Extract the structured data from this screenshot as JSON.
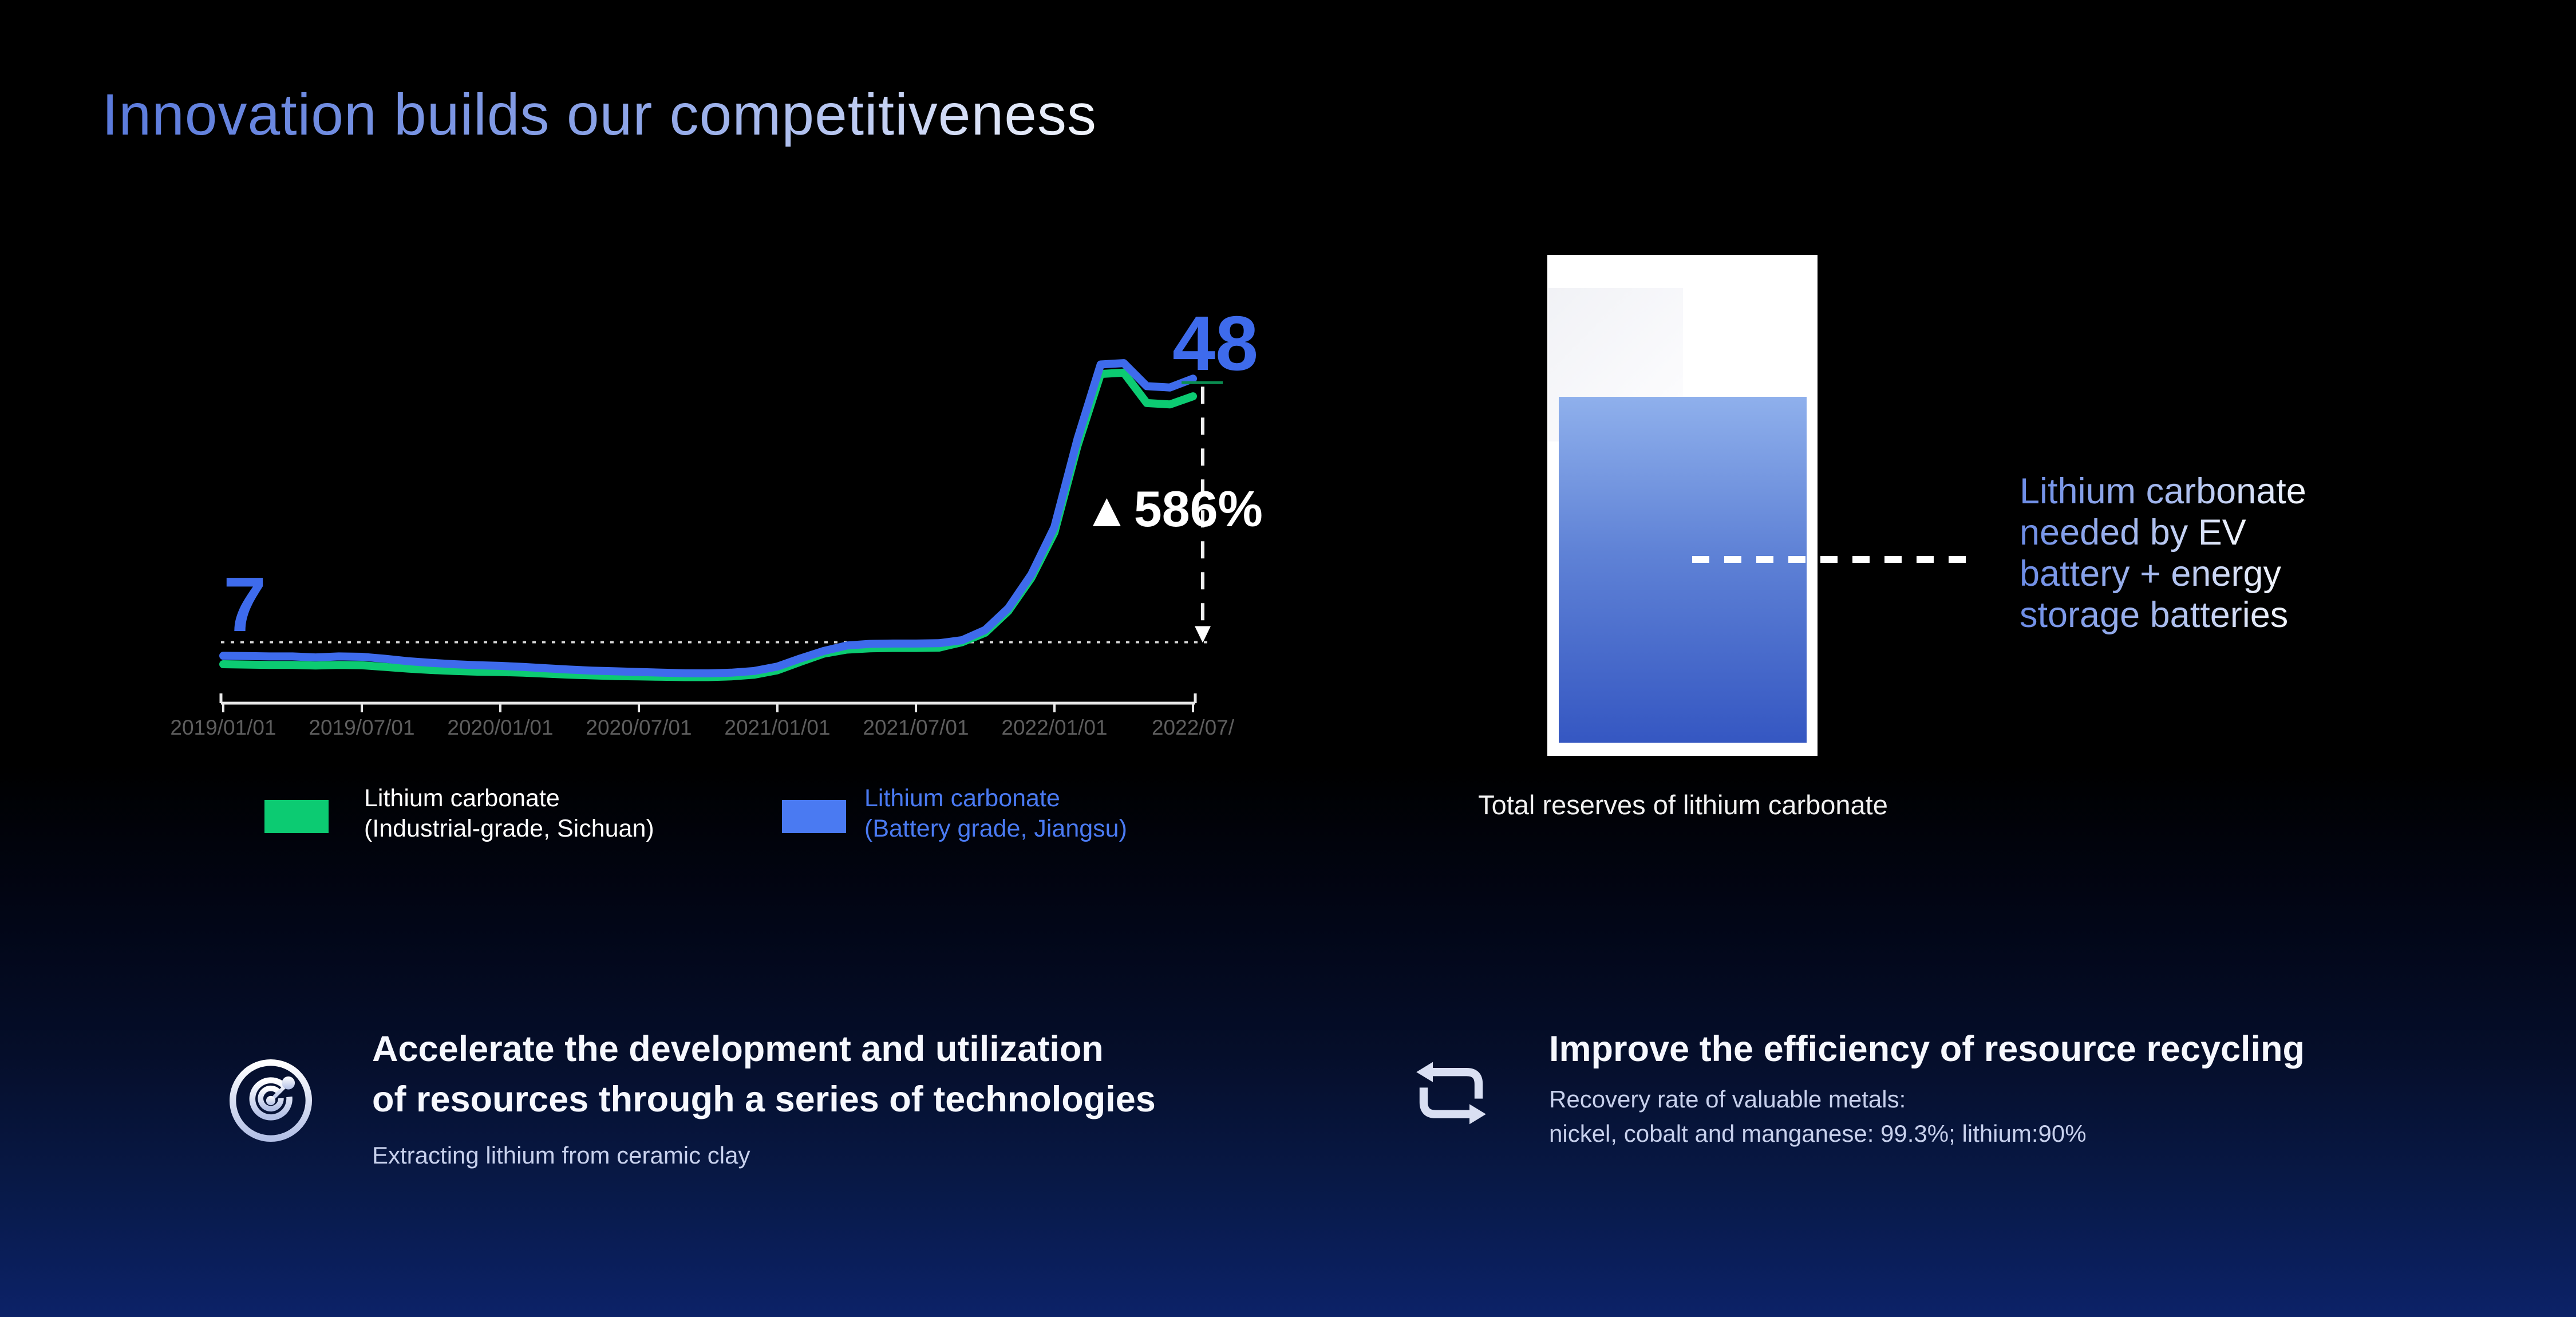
{
  "slide": {
    "title": "Innovation builds our competitiveness"
  },
  "chart": {
    "start_label": "7",
    "end_label": "48",
    "change_marker": "▲",
    "change_label": "586%",
    "legend": [
      {
        "line1": "Lithium carbonate",
        "line2": "(Industrial-grade, Sichuan)",
        "color": "#0ccb72"
      },
      {
        "line1": "Lithium carbonate",
        "line2": "(Battery grade, Jiangsu)",
        "color": "#4a7af2"
      }
    ]
  },
  "chart_data": {
    "type": "line",
    "title": "Lithium carbonate price trend",
    "x_tick_labels": [
      "2019/01/01",
      "2019/07/01",
      "2020/01/01",
      "2020/07/01",
      "2021/01/01",
      "2021/07/01",
      "2022/01/01",
      "2022/07/"
    ],
    "x_range": [
      "2019/01",
      "2022/07"
    ],
    "ylim": [
      0,
      55
    ],
    "reference_level": 9.0,
    "grid": false,
    "legend_position": "bottom",
    "annotations": {
      "start_value": 7,
      "end_value": 48,
      "change_percent": "+586%"
    },
    "series": [
      {
        "name": "Lithium carbonate (Industrial-grade, Sichuan)",
        "color": "#0ccb72",
        "values": [
          5.75,
          5.7,
          5.65,
          5.65,
          5.55,
          5.65,
          5.6,
          5.35,
          5.1,
          4.9,
          4.75,
          4.65,
          4.6,
          4.5,
          4.35,
          4.2,
          4.1,
          4.0,
          3.95,
          3.9,
          3.85,
          3.85,
          3.95,
          4.2,
          4.85,
          6.1,
          7.3,
          7.9,
          8.1,
          8.15,
          8.15,
          8.2,
          9.0,
          10.4,
          13.6,
          18.5,
          25.2,
          38.0,
          48.6,
          48.8,
          44.3,
          44.1,
          45.3
        ]
      },
      {
        "name": "Lithium carbonate (Battery grade, Jiangsu)",
        "color": "#3e6bec",
        "values": [
          7.0,
          6.95,
          6.9,
          6.9,
          6.75,
          6.9,
          6.85,
          6.55,
          6.2,
          5.95,
          5.75,
          5.6,
          5.5,
          5.35,
          5.15,
          4.95,
          4.8,
          4.7,
          4.6,
          4.5,
          4.42,
          4.4,
          4.5,
          4.75,
          5.4,
          6.6,
          7.7,
          8.5,
          8.75,
          8.8,
          8.8,
          8.85,
          9.3,
          10.8,
          14.0,
          19.0,
          26.0,
          39.0,
          50.0,
          50.2,
          46.8,
          46.6,
          47.9
        ]
      }
    ]
  },
  "reserves": {
    "caption_lines": [
      "Lithium carbonate",
      "needed by EV",
      "battery + energy",
      "storage batteries"
    ],
    "label": "Total reserves of lithium carbonate",
    "fill_ratio": 0.69
  },
  "initiatives": {
    "left": {
      "heading_line1": "Accelerate the development and utilization",
      "heading_line2": "of resources through a series of technologies",
      "subtext": "Extracting lithium from ceramic clay"
    },
    "right": {
      "heading": "Improve the efficiency of resource recycling",
      "subtext_line1": "Recovery rate of valuable metals:",
      "subtext_line2": "nickel, cobalt and manganese: 99.3%; lithium:90%"
    }
  }
}
